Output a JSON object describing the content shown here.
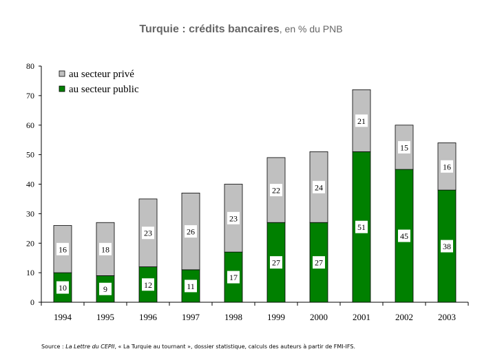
{
  "title": {
    "main": "Turquie : crédits bancaires",
    "sub": ", en % du PNB"
  },
  "source": {
    "prefix": "Source : ",
    "italic1": "La Lettre du CEPII",
    "middle": ", « La Turquie au  tournant », dossier statistique, calculs des auteurs à partir de FMI-IFS."
  },
  "chart_data": {
    "type": "bar",
    "stacked": true,
    "categories": [
      "1994",
      "1995",
      "1996",
      "1997",
      "1998",
      "1999",
      "2000",
      "2001",
      "2002",
      "2003"
    ],
    "series": [
      {
        "name": "au secteur public",
        "color": "#008000",
        "values": [
          10,
          9,
          12,
          11,
          17,
          27,
          27,
          51,
          45,
          38
        ]
      },
      {
        "name": "au secteur privé",
        "color": "#c0c0c0",
        "values": [
          16,
          18,
          23,
          26,
          23,
          22,
          24,
          21,
          15,
          16
        ]
      }
    ],
    "ylim": [
      0,
      80
    ],
    "yticks": [
      "0",
      "10",
      "20",
      "30",
      "40",
      "50",
      "60",
      "70",
      "80"
    ],
    "title": "Turquie : crédits bancaires, en % du PNB",
    "xlabel": "",
    "ylabel": "",
    "legend_position": "top-left",
    "grid": false
  }
}
